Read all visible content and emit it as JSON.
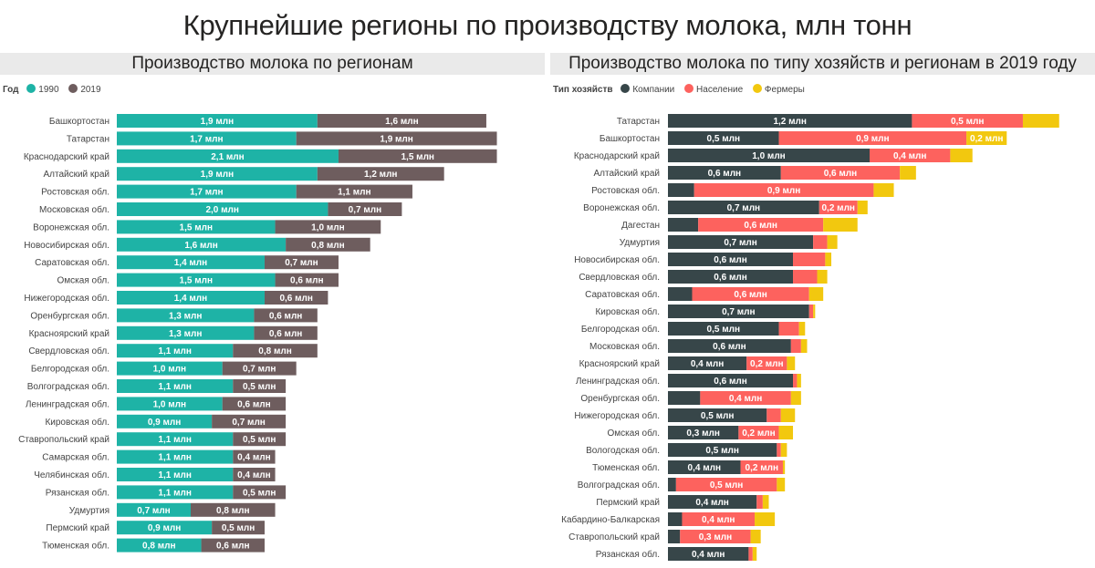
{
  "title": "Крупнейшие регионы по производству молока, млн тонн",
  "colors": {
    "y1990": "#1eb3a6",
    "y2019": "#6e5d5e",
    "companies": "#374649",
    "population": "#fd625e",
    "farmers": "#f2c80f"
  },
  "chart_data": [
    {
      "type": "bar",
      "orientation": "horizontal",
      "stacked": true,
      "title": "Производство молока по регионам",
      "legend_title": "Год",
      "legend_position": "top-left",
      "categories": [
        "Башкортостан",
        "Татарстан",
        "Краснодарский край",
        "Алтайский край",
        "Ростовская обл.",
        "Московская обл.",
        "Воронежская обл.",
        "Новосибирская обл.",
        "Саратовская обл.",
        "Омская обл.",
        "Нижегородская обл.",
        "Оренбургская обл.",
        "Красноярский край",
        "Свердловская обл.",
        "Белгородская обл.",
        "Волгоградская обл.",
        "Ленинградская обл.",
        "Кировская обл.",
        "Ставропольский край",
        "Самарская обл.",
        "Челябинская обл.",
        "Рязанская обл.",
        "Удмуртия",
        "Пермский край",
        "Тюменская обл."
      ],
      "series": [
        {
          "name": "1990",
          "color": "#1eb3a6",
          "values": [
            1.9,
            1.7,
            2.1,
            1.9,
            1.7,
            2.0,
            1.5,
            1.6,
            1.4,
            1.5,
            1.4,
            1.3,
            1.3,
            1.1,
            1.0,
            1.1,
            1.0,
            0.9,
            1.1,
            1.1,
            1.1,
            1.1,
            0.7,
            0.9,
            0.8
          ],
          "labels": [
            "1,9 млн",
            "1,7 млн",
            "2,1 млн",
            "1,9 млн",
            "1,7 млн",
            "2,0 млн",
            "1,5 млн",
            "1,6 млн",
            "1,4 млн",
            "1,5 млн",
            "1,4 млн",
            "1,3 млн",
            "1,3 млн",
            "1,1 млн",
            "1,0 млн",
            "1,1 млн",
            "1,0 млн",
            "0,9 млн",
            "1,1 млн",
            "1,1 млн",
            "1,1 млн",
            "1,1 млн",
            "0,7 млн",
            "0,9 млн",
            "0,8 млн"
          ]
        },
        {
          "name": "2019",
          "color": "#6e5d5e",
          "values": [
            1.6,
            1.9,
            1.5,
            1.2,
            1.1,
            0.7,
            1.0,
            0.8,
            0.7,
            0.6,
            0.6,
            0.6,
            0.6,
            0.8,
            0.7,
            0.5,
            0.6,
            0.7,
            0.5,
            0.4,
            0.4,
            0.5,
            0.8,
            0.5,
            0.6
          ],
          "labels": [
            "1,6 млн",
            "1,9 млн",
            "1,5 млн",
            "1,2 млн",
            "1,1 млн",
            "0,7 млн",
            "1,0 млн",
            "0,8 млн",
            "0,7 млн",
            "0,6 млн",
            "0,6 млн",
            "0,6 млн",
            "0,6 млн",
            "0,8 млн",
            "0,7 млн",
            "0,5 млн",
            "0,6 млн",
            "0,7 млн",
            "0,5 млн",
            "0,4 млн",
            "0,4 млн",
            "0,5 млн",
            "0,8 млн",
            "0,5 млн",
            "0,6 млн"
          ]
        }
      ]
    },
    {
      "type": "bar",
      "orientation": "horizontal",
      "stacked": true,
      "title": "Производство молока по типу хозяйств и регионам в 2019 году",
      "legend_title": "Тип хозяйств",
      "legend_position": "top-left",
      "categories": [
        "Татарстан",
        "Башкортостан",
        "Краснодарский край",
        "Алтайский край",
        "Ростовская обл.",
        "Воронежская обл.",
        "Дагестан",
        "Удмуртия",
        "Новосибирская обл.",
        "Свердловская обл.",
        "Саратовская обл.",
        "Кировская обл.",
        "Белгородская обл.",
        "Московская обл.",
        "Красноярский край",
        "Ленинградская обл.",
        "Оренбургская обл.",
        "Нижегородская обл.",
        "Омская обл.",
        "Вологодская обл.",
        "Тюменская обл.",
        "Волгоградская обл.",
        "Пермский край",
        "Кабардино-Балкарская",
        "Ставропольский край",
        "Рязанская обл."
      ],
      "series": [
        {
          "name": "Компании",
          "color": "#374649",
          "values": [
            1.21,
            0.55,
            1.0,
            0.56,
            0.13,
            0.75,
            0.15,
            0.72,
            0.62,
            0.62,
            0.12,
            0.7,
            0.55,
            0.61,
            0.39,
            0.62,
            0.16,
            0.49,
            0.35,
            0.54,
            0.36,
            0.04,
            0.44,
            0.07,
            0.06,
            0.4
          ],
          "labels": [
            "1,2 млн",
            "0,5 млн",
            "1,0 млн",
            "0,6 млн",
            "",
            "0,7 млн",
            "",
            "0,7 млн",
            "0,6 млн",
            "0,6 млн",
            "",
            "0,7 млн",
            "0,5 млн",
            "0,6 млн",
            "0,4 млн",
            "0,6 млн",
            "",
            "0,5 млн",
            "0,3 млн",
            "0,5 млн",
            "0,4 млн",
            "",
            "0,4 млн",
            "",
            "",
            "0,4 млн"
          ]
        },
        {
          "name": "Население",
          "color": "#fd625e",
          "values": [
            0.55,
            0.93,
            0.4,
            0.59,
            0.89,
            0.19,
            0.62,
            0.07,
            0.16,
            0.12,
            0.58,
            0.02,
            0.1,
            0.05,
            0.2,
            0.02,
            0.45,
            0.07,
            0.2,
            0.02,
            0.21,
            0.5,
            0.03,
            0.36,
            0.35,
            0.02
          ],
          "labels": [
            "0,5 млн",
            "0,9 млн",
            "0,4 млн",
            "0,6 млн",
            "0,9 млн",
            "0,2 млн",
            "0,6 млн",
            "",
            "",
            "",
            "0,6 млн",
            "",
            "",
            "",
            "0,2 млн",
            "",
            "0,4 млн",
            "",
            "0,2 млн",
            "",
            "0,2 млн",
            "0,5 млн",
            "",
            "0,4 млн",
            "0,3 млн",
            ""
          ]
        },
        {
          "name": "Фермеры",
          "color": "#f2c80f",
          "values": [
            0.18,
            0.2,
            0.11,
            0.08,
            0.1,
            0.05,
            0.17,
            0.05,
            0.03,
            0.05,
            0.07,
            0.01,
            0.03,
            0.03,
            0.04,
            0.02,
            0.05,
            0.07,
            0.07,
            0.03,
            0.01,
            0.04,
            0.03,
            0.1,
            0.05,
            0.02
          ],
          "labels": [
            "",
            "0,2 млн",
            "",
            "",
            "",
            "",
            "",
            "",
            "",
            "",
            "",
            "",
            "",
            "",
            "",
            "",
            "",
            "",
            "",
            "",
            "",
            "",
            "",
            "",
            "",
            ""
          ]
        }
      ]
    }
  ]
}
